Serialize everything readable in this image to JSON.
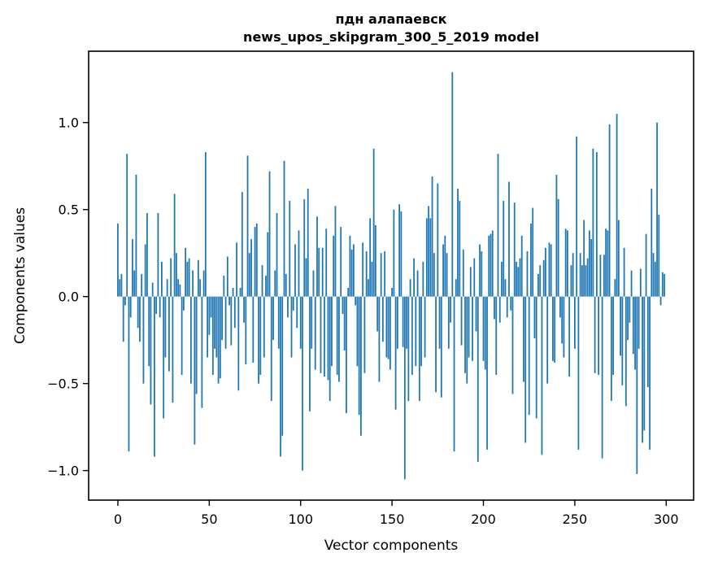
{
  "figure": {
    "background": "#ffffff"
  },
  "chart_data": {
    "type": "bar",
    "title_lines": [
      "пдн алапаевск",
      "news_upos_skipgram_300_5_2019 model"
    ],
    "title": "пдн алапаевск\nnews_upos_skipgram_300_5_2019 model",
    "xlabel": "Vector components",
    "ylabel": "Components values",
    "x_start": 0,
    "x_end": 299,
    "xlim": [
      -16,
      315
    ],
    "ylim": [
      -1.17,
      1.41
    ],
    "grid": false,
    "legend": "none",
    "bar_color": "#1f77b4",
    "axis_color": "#000000",
    "xticks": {
      "values": [
        0,
        50,
        100,
        150,
        200,
        250,
        300
      ],
      "labels": [
        "0",
        "50",
        "100",
        "150",
        "200",
        "250",
        "300"
      ]
    },
    "yticks": {
      "values": [
        1.0,
        0.5,
        0.0,
        -0.5,
        -1.0
      ],
      "labels": [
        "1.0",
        "0.5",
        "0.0",
        "−0.5",
        "−1.0"
      ]
    },
    "values": [
      0.42,
      0.1,
      0.13,
      -0.26,
      -0.05,
      0.82,
      -0.89,
      -0.12,
      0.33,
      0.15,
      0.7,
      -0.18,
      -0.26,
      0.13,
      -0.5,
      0.3,
      0.48,
      -0.4,
      -0.62,
      0.08,
      -0.92,
      -0.1,
      0.48,
      -0.12,
      0.2,
      -0.7,
      -0.35,
      0.1,
      -0.43,
      0.22,
      -0.61,
      0.59,
      0.25,
      0.1,
      0.07,
      -0.45,
      -0.08,
      0.28,
      0.2,
      0.22,
      -0.5,
      0.15,
      -0.85,
      -0.56,
      0.21,
      0.1,
      -0.64,
      0.15,
      0.83,
      -0.35,
      -0.22,
      -0.12,
      -0.45,
      -0.3,
      -0.35,
      -0.5,
      -0.47,
      -0.25,
      0.12,
      -0.3,
      0.23,
      -0.05,
      -0.28,
      0.05,
      -0.18,
      0.31,
      -0.54,
      0.05,
      0.6,
      -0.15,
      -0.39,
      0.81,
      0.25,
      0.33,
      -0.38,
      0.4,
      0.42,
      -0.5,
      -0.45,
      0.18,
      -0.35,
      0.12,
      0.37,
      0.72,
      -0.6,
      -0.25,
      0.15,
      0.48,
      -0.3,
      -0.92,
      -0.8,
      0.78,
      0.13,
      -0.12,
      0.55,
      -0.35,
      -0.08,
      0.3,
      -0.18,
      0.38,
      -0.3,
      -1.0,
      0.56,
      0.22,
      0.62,
      -0.66,
      -0.3,
      0.15,
      -0.42,
      0.46,
      0.28,
      -0.44,
      0.28,
      -0.46,
      0.39,
      -0.48,
      -0.6,
      -0.4,
      0.35,
      0.52,
      -0.45,
      -0.49,
      0.4,
      -0.1,
      -0.31,
      -0.67,
      0.05,
      0.35,
      0.27,
      0.3,
      -0.05,
      -0.4,
      -0.68,
      -0.8,
      0.31,
      -0.44,
      0.26,
      0.1,
      0.45,
      0.2,
      0.85,
      0.41,
      -0.2,
      -0.49,
      0.25,
      -0.26,
      0.26,
      -0.35,
      -0.36,
      -0.42,
      0.05,
      0.5,
      -0.65,
      -0.3,
      0.53,
      0.49,
      -0.29,
      -1.05,
      -0.3,
      -0.6,
      0.1,
      -0.45,
      0.22,
      -0.4,
      0.15,
      -0.6,
      -0.4,
      0.2,
      -0.35,
      0.45,
      0.52,
      0.45,
      0.69,
      0.25,
      -0.55,
      0.65,
      -0.3,
      -0.58,
      0.3,
      0.35,
      0.25,
      -0.3,
      -0.15,
      1.29,
      -0.89,
      0.1,
      0.62,
      0.55,
      -0.28,
      0.27,
      -0.44,
      -0.5,
      -0.35,
      0.17,
      -0.37,
      0.22,
      -0.2,
      -0.95,
      0.3,
      0.26,
      -0.37,
      -0.42,
      -0.88,
      0.35,
      0.36,
      0.38,
      -0.13,
      -0.45,
      0.82,
      -0.15,
      0.2,
      0.55,
      0.1,
      -0.12,
      0.66,
      -0.08,
      -0.56,
      0.54,
      0.2,
      0.17,
      0.22,
      0.35,
      -0.49,
      -0.84,
      0.26,
      -0.68,
      0.42,
      0.51,
      -0.24,
      -0.7,
      0.13,
      0.18,
      -0.91,
      0.21,
      0.28,
      -0.5,
      0.31,
      0.3,
      -0.37,
      -0.38,
      0.7,
      0.56,
      -0.12,
      -0.27,
      -0.35,
      0.39,
      0.38,
      -0.46,
      0.18,
      0.25,
      -0.3,
      0.92,
      -0.88,
      0.25,
      0.18,
      0.44,
      0.18,
      0.22,
      0.38,
      0.33,
      0.85,
      -0.44,
      0.83,
      -0.45,
      0.24,
      -0.93,
      0.24,
      0.39,
      0.38,
      0.99,
      -0.6,
      -0.45,
      0.1,
      1.05,
      0.44,
      -0.34,
      -0.51,
      0.28,
      -0.63,
      -0.25,
      -0.15,
      0.15,
      -0.33,
      -0.42,
      -1.02,
      -0.3,
      0.16,
      -0.84,
      -0.77,
      0.36,
      -0.52,
      -0.88,
      0.62,
      0.25,
      0.2,
      1.0,
      0.47,
      -0.05,
      0.14,
      0.13
    ]
  }
}
